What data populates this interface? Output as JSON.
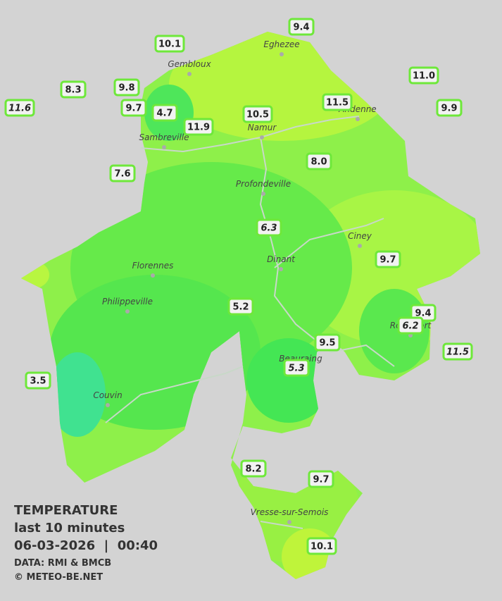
{
  "map": {
    "towns": [
      "Eghezee",
      "Gembloux",
      "Andenne",
      "Namur",
      "Sambreville",
      "Profondeville",
      "Ciney",
      "Dinant",
      "Florennes",
      "Philippeville",
      "Rochefort",
      "Beauraing",
      "Couvin",
      "Vresse-sur-Semois"
    ],
    "stations": [
      {
        "label": "10.1"
      },
      {
        "label": "9.4"
      },
      {
        "label": "11.0"
      },
      {
        "label": "8.3"
      },
      {
        "label": "9.8"
      },
      {
        "label": "11.6",
        "italic": true
      },
      {
        "label": "9.7"
      },
      {
        "label": "4.7"
      },
      {
        "label": "11.9"
      },
      {
        "label": "10.5"
      },
      {
        "label": "11.5"
      },
      {
        "label": "9.9"
      },
      {
        "label": "8.0"
      },
      {
        "label": "7.6"
      },
      {
        "label": "6.3",
        "italic": true
      },
      {
        "label": "9.7"
      },
      {
        "label": "5.2"
      },
      {
        "label": "9.4"
      },
      {
        "label": "6.2",
        "italic": true
      },
      {
        "label": "9.5"
      },
      {
        "label": "11.5",
        "italic": true
      },
      {
        "label": "3.5"
      },
      {
        "label": "5.3",
        "italic": true
      },
      {
        "label": "8.2"
      },
      {
        "label": "9.7"
      },
      {
        "label": "10.1"
      }
    ],
    "legend": {
      "title": "TEMPERATURE",
      "period": "last 10 minutes",
      "datetime": "06-03-2026  |  00:40",
      "source": "DATA: RMI & BMCB",
      "copyright": "© METEO-BE.NET"
    }
  }
}
